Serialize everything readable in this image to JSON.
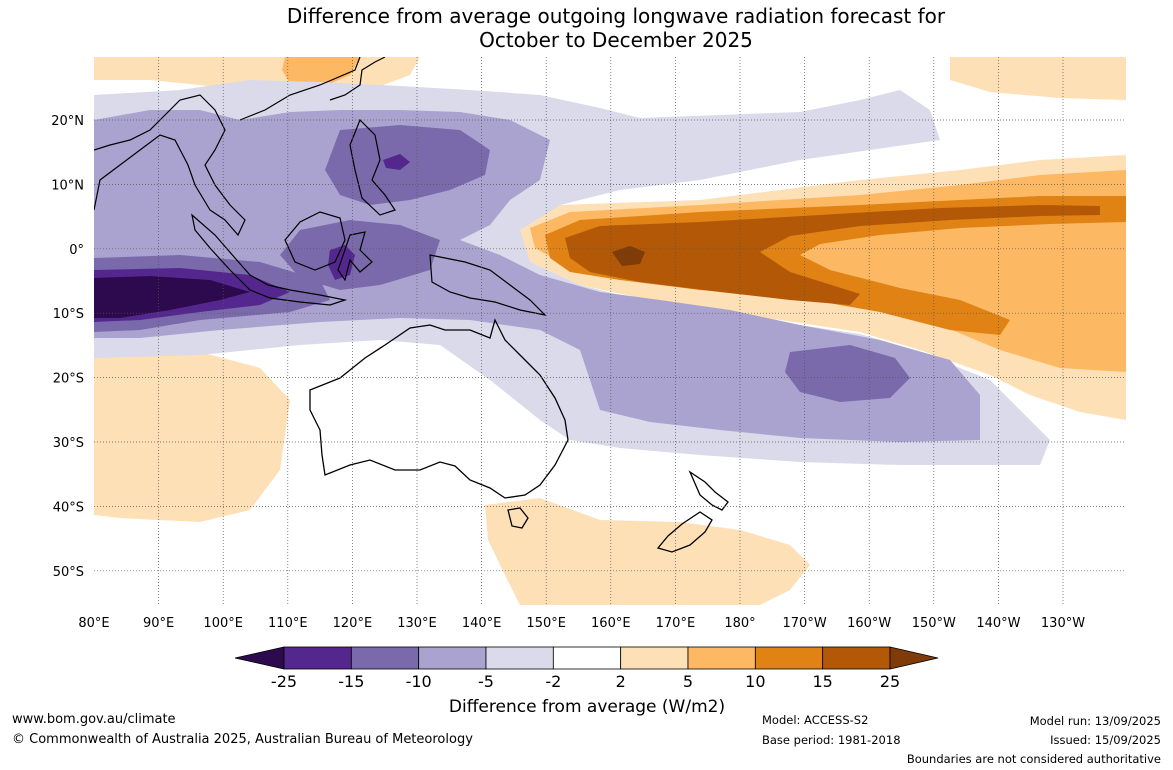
{
  "title": {
    "line1": "Difference from average outgoing longwave radiation forecast for",
    "line2": "October to December 2025"
  },
  "map": {
    "lon_ticks": [
      "80°E",
      "90°E",
      "100°E",
      "110°E",
      "120°E",
      "130°E",
      "140°E",
      "150°E",
      "160°E",
      "170°E",
      "180°",
      "170°W",
      "160°W",
      "150°W",
      "140°W",
      "130°W"
    ],
    "lat_ticks": [
      "20°N",
      "10°N",
      "0°",
      "10°S",
      "20°S",
      "30°S",
      "40°S",
      "50°S"
    ],
    "regions": [
      {
        "name": "asia-land",
        "color": "#ffffff"
      },
      {
        "name": "australia",
        "color": "#ffffff"
      },
      {
        "name": "new-zealand",
        "color": "#ffffff"
      }
    ]
  },
  "colorbar": {
    "ticks": [
      "-25",
      "-15",
      "-10",
      "-5",
      "-2",
      "2",
      "5",
      "10",
      "15",
      "25"
    ],
    "colors": [
      "#2d0a4e",
      "#54278f",
      "#7b6aab",
      "#aaa3cf",
      "#dadaeb",
      "#ffffff",
      "#fee0b6",
      "#fdb863",
      "#e08214",
      "#b35806",
      "#7f3b08"
    ],
    "label": "Difference from average (W/m2)"
  },
  "footer": {
    "url": "www.bom.gov.au/climate",
    "copyright": "© Commonwealth of Australia 2025, Australian Bureau of Meteorology",
    "model": "Model: ACCESS-S2",
    "base_period": "Base period: 1981-2018",
    "model_run": "Model run: 13/09/2025",
    "issued": "Issued: 15/09/2025",
    "disclaimer": "Boundaries are not considered authoritative"
  }
}
